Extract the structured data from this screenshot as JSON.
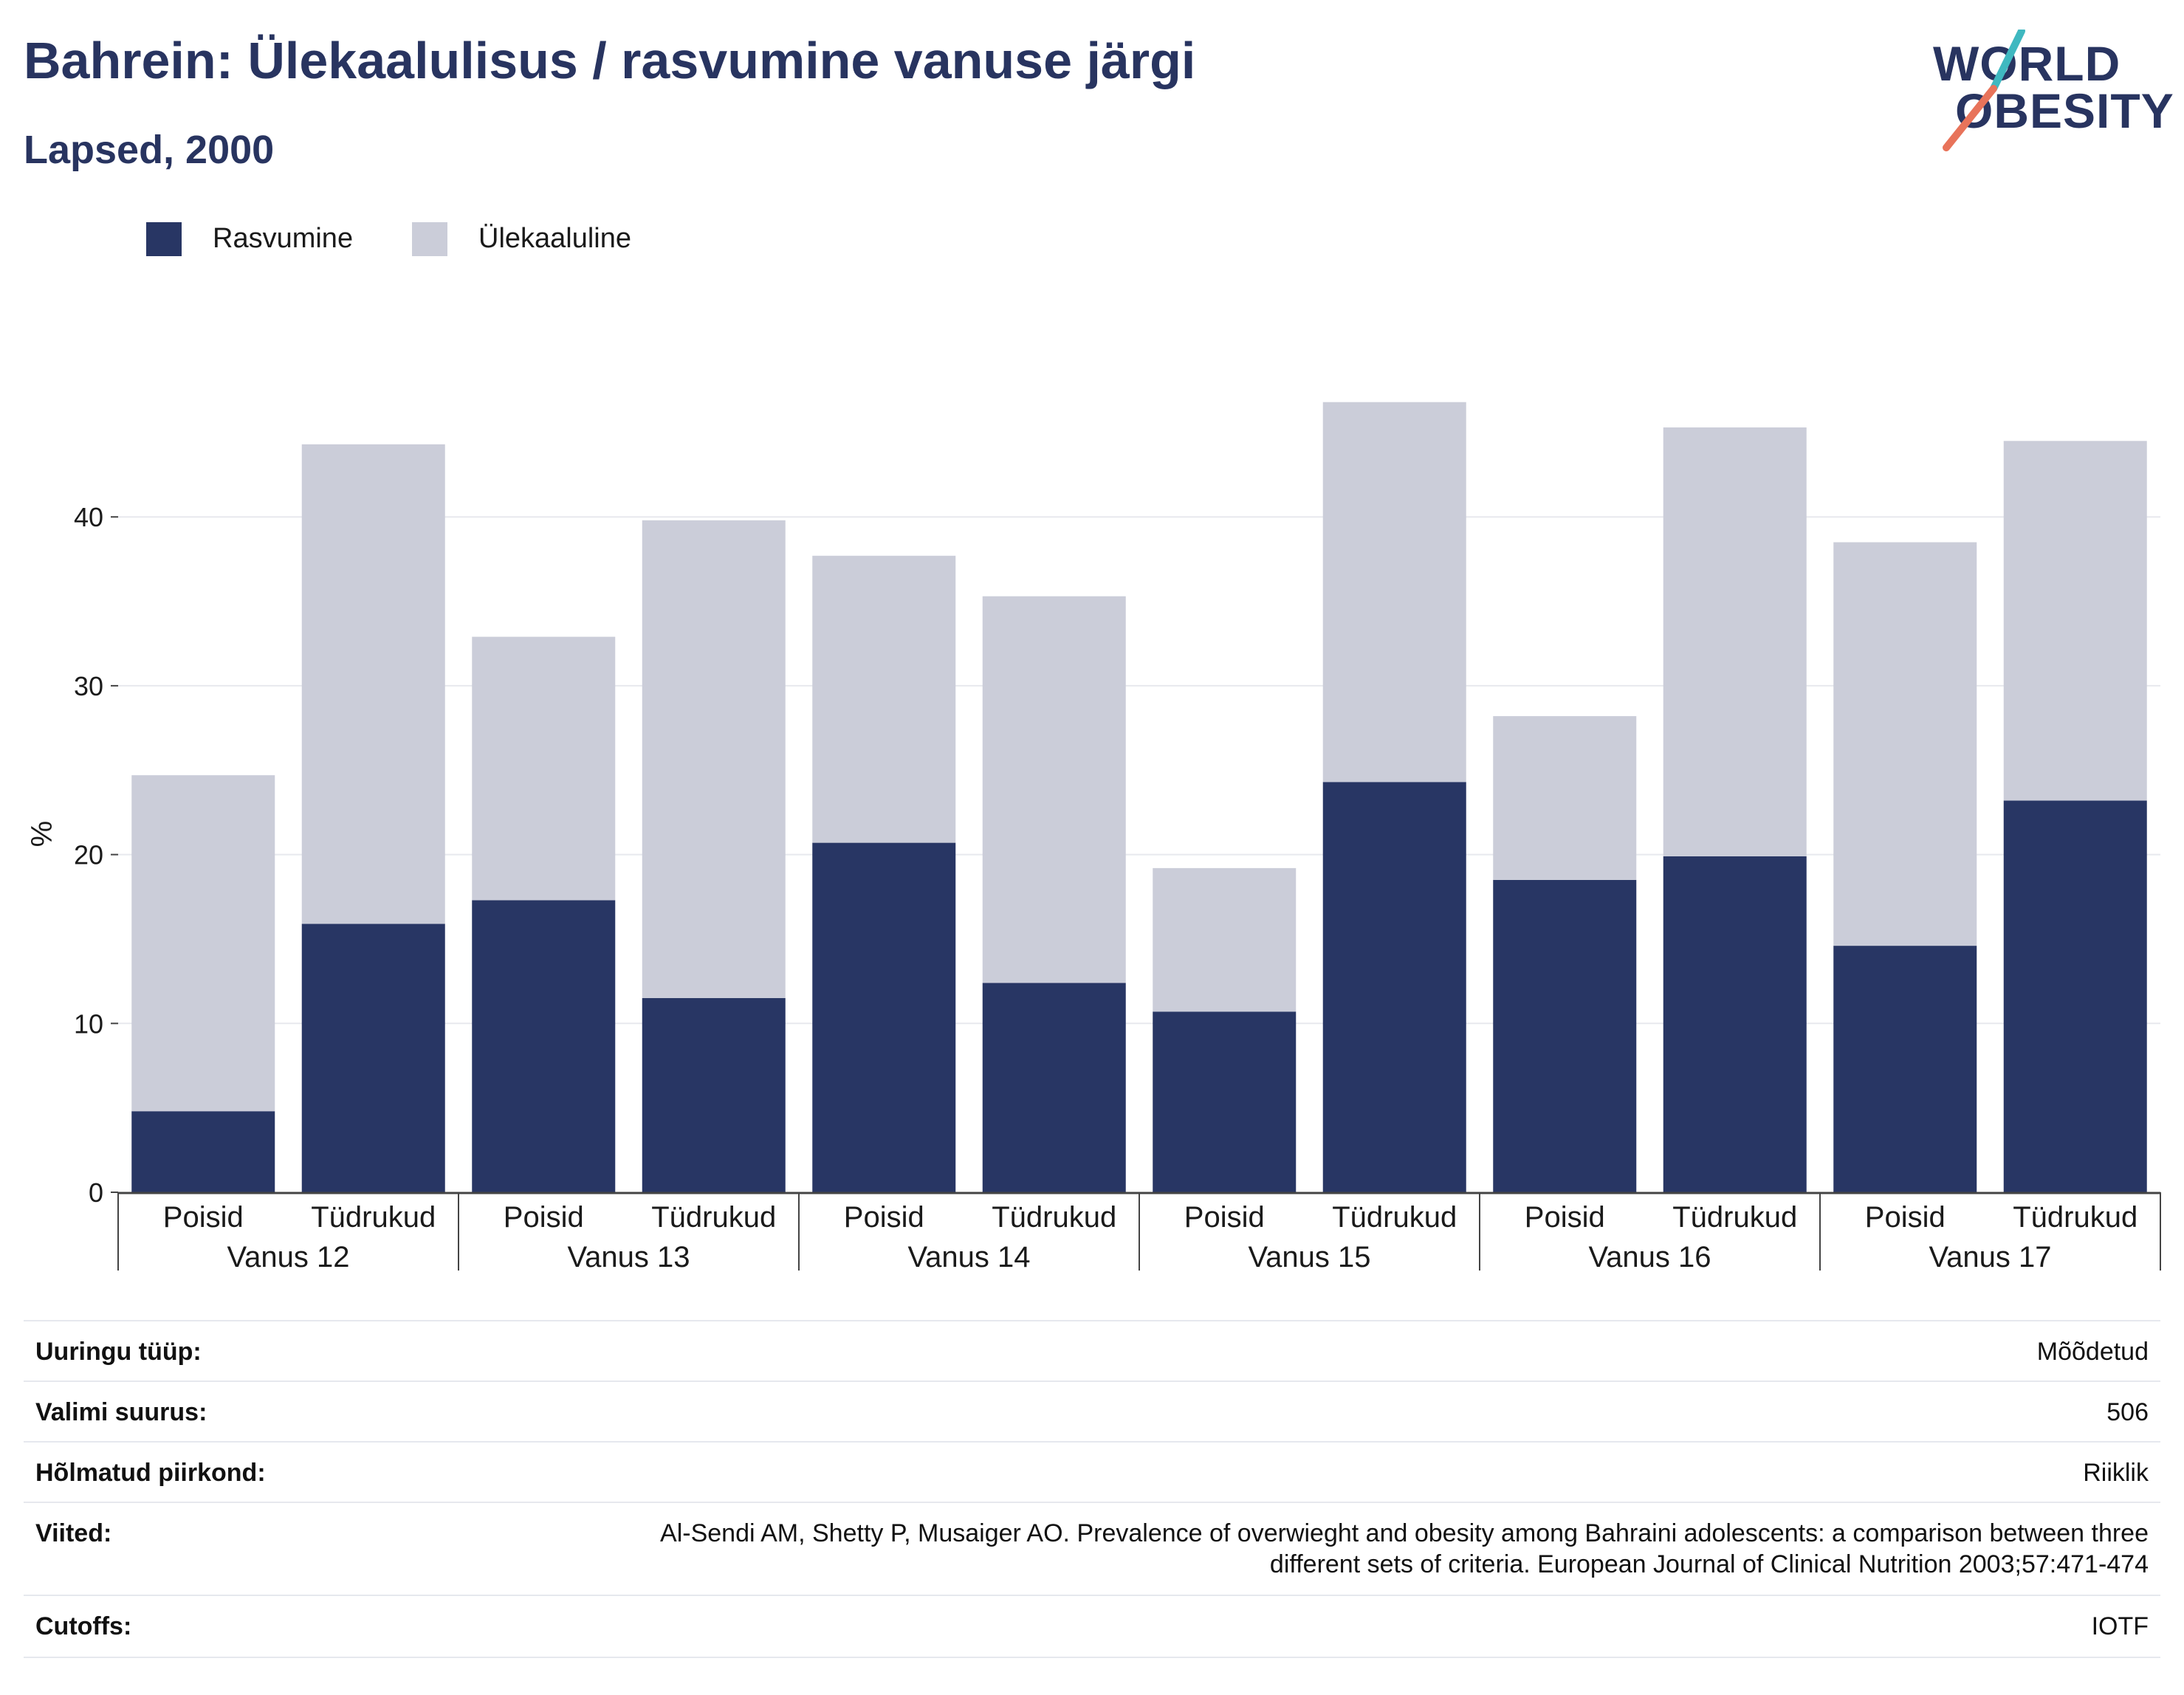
{
  "header": {
    "title": "Bahrein: Ülekaalulisus / rasvumine vanuse järgi",
    "subtitle": "Lapsed, 2000"
  },
  "logo": {
    "line1": "WORLD",
    "line2": "OBESITY",
    "accent_teal": "#3fb8c0",
    "accent_coral": "#e8735a"
  },
  "colors": {
    "obesity": "#283664",
    "overweight": "#cbcdd9",
    "text": "#283460",
    "grid": "#e8e9ee"
  },
  "chart_data": {
    "type": "bar",
    "stacked": true,
    "ylabel": "%",
    "ylim": [
      0,
      48
    ],
    "yticks": [
      0,
      10,
      20,
      30,
      40
    ],
    "grid": true,
    "legend_position": "top-left",
    "groups": [
      "Vanus 12",
      "Vanus 13",
      "Vanus 14",
      "Vanus 15",
      "Vanus 16",
      "Vanus 17"
    ],
    "categories": [
      "Poisid",
      "Tüdrukud",
      "Poisid",
      "Tüdrukud",
      "Poisid",
      "Tüdrukud",
      "Poisid",
      "Tüdrukud",
      "Poisid",
      "Tüdrukud",
      "Poisid",
      "Tüdrukud"
    ],
    "series": [
      {
        "name": "Rasvumine",
        "values": [
          4.8,
          15.9,
          17.3,
          11.5,
          20.7,
          12.4,
          10.7,
          24.3,
          18.5,
          19.9,
          14.6,
          23.2
        ]
      },
      {
        "name": "Ülekaaluline",
        "values": [
          19.9,
          28.4,
          15.6,
          28.3,
          17.0,
          22.9,
          8.5,
          22.5,
          9.7,
          25.4,
          23.9,
          21.3
        ]
      }
    ]
  },
  "meta": [
    {
      "key": "Uuringu tüüp:",
      "value": "Mõõdetud"
    },
    {
      "key": "Valimi suurus:",
      "value": "506"
    },
    {
      "key": "Hõlmatud piirkond:",
      "value": "Riiklik"
    },
    {
      "key": "Viited:",
      "value": "Al-Sendi AM, Shetty P, Musaiger AO. Prevalence of overwieght and obesity among Bahraini adolescents: a comparison between three",
      "value2": "different sets of criteria. European Journal of Clinical Nutrition 2003;57:471-474"
    },
    {
      "key": "Cutoffs:",
      "value": "IOTF"
    }
  ]
}
